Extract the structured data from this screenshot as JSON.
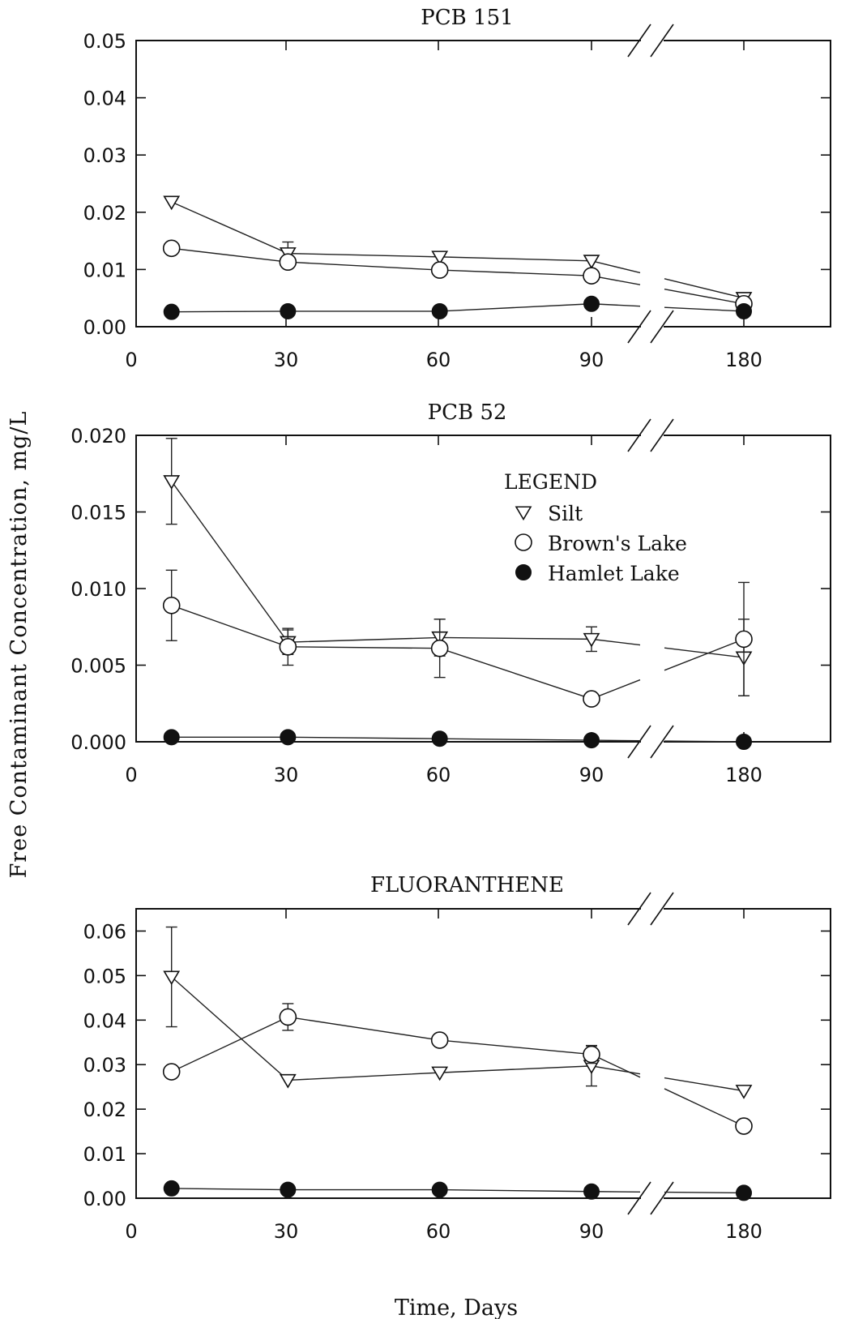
{
  "chart_data": [
    {
      "type": "line",
      "title": "PCB 151",
      "x_tick_labels": [
        "0",
        "30",
        "60",
        "90",
        "180"
      ],
      "x_break": "between 90 and 180",
      "ylim": [
        0,
        0.05
      ],
      "y_tick_labels": [
        "0.00",
        "0.01",
        "0.02",
        "0.03",
        "0.04",
        "0.05"
      ],
      "series": [
        {
          "name": "Silt",
          "marker": "triangle-down",
          "x": [
            7,
            30,
            60,
            90,
            180
          ],
          "y": [
            0.0218,
            0.0128,
            0.0122,
            0.0115,
            0.005
          ],
          "err": [
            0,
            0.002,
            0,
            0,
            0
          ]
        },
        {
          "name": "Brown's Lake",
          "marker": "circle-open",
          "x": [
            7,
            30,
            60,
            90,
            180
          ],
          "y": [
            0.0137,
            0.0113,
            0.0099,
            0.0089,
            0.004
          ],
          "err": [
            0,
            0.0008,
            0,
            0,
            0
          ]
        },
        {
          "name": "Hamlet Lake",
          "marker": "circle-filled",
          "x": [
            7,
            30,
            60,
            90,
            180
          ],
          "y": [
            0.0026,
            0.0027,
            0.0027,
            0.004,
            0.0027
          ],
          "err": [
            0,
            0,
            0,
            0,
            0
          ]
        }
      ]
    },
    {
      "type": "line",
      "title": "PCB 52",
      "x_tick_labels": [
        "0",
        "30",
        "60",
        "90",
        "180"
      ],
      "x_break": "between 90 and 180",
      "ylim": [
        0,
        0.02
      ],
      "y_tick_labels": [
        "0.000",
        "0.005",
        "0.010",
        "0.015",
        "0.020"
      ],
      "series": [
        {
          "name": "Silt",
          "marker": "triangle-down",
          "x": [
            7,
            30,
            60,
            90,
            180
          ],
          "y": [
            0.017,
            0.0065,
            0.0068,
            0.0067,
            0.0055
          ],
          "err": [
            0.0028,
            0.0008,
            0.0012,
            0.0008,
            0.0025
          ]
        },
        {
          "name": "Brown's Lake",
          "marker": "circle-open",
          "x": [
            7,
            30,
            60,
            90,
            180
          ],
          "y": [
            0.0089,
            0.0062,
            0.0061,
            0.0028,
            0.0067
          ],
          "err": [
            0.0023,
            0.0012,
            0.0019,
            0,
            0.0037
          ]
        },
        {
          "name": "Hamlet Lake",
          "marker": "circle-filled",
          "x": [
            7,
            30,
            60,
            90,
            180
          ],
          "y": [
            0.0003,
            0.0003,
            0.0002,
            0.0001,
            0.0
          ],
          "err": [
            0,
            0,
            0,
            0,
            0
          ]
        }
      ]
    },
    {
      "type": "line",
      "title": "FLUORANTHENE",
      "x_tick_labels": [
        "0",
        "30",
        "60",
        "90",
        "180"
      ],
      "x_break": "between 90 and 180",
      "ylim": [
        0,
        0.065
      ],
      "y_tick_labels": [
        "0.00",
        "0.01",
        "0.02",
        "0.03",
        "0.04",
        "0.05",
        "0.06"
      ],
      "series": [
        {
          "name": "Silt",
          "marker": "triangle-down",
          "x": [
            7,
            30,
            60,
            90,
            180
          ],
          "y": [
            0.0497,
            0.0265,
            0.0282,
            0.0297,
            0.0241
          ],
          "err": [
            0.0112,
            0,
            0,
            0.0045,
            0
          ]
        },
        {
          "name": "Brown's Lake",
          "marker": "circle-open",
          "x": [
            7,
            30,
            60,
            90,
            180
          ],
          "y": [
            0.0284,
            0.0407,
            0.0355,
            0.0323,
            0.0162
          ],
          "err": [
            0,
            0.003,
            0,
            0.002,
            0
          ]
        },
        {
          "name": "Hamlet Lake",
          "marker": "circle-filled",
          "x": [
            7,
            30,
            60,
            90,
            180
          ],
          "y": [
            0.0022,
            0.0019,
            0.0019,
            0.0015,
            0.0012
          ],
          "err": [
            0,
            0,
            0,
            0,
            0
          ]
        }
      ]
    }
  ],
  "ylabel": "Free Contaminant Concentration, mg/L",
  "xlabel": "Time, Days",
  "legend": {
    "title": "LEGEND",
    "items": [
      {
        "label": "Silt",
        "marker": "triangle-down"
      },
      {
        "label": "Brown's Lake",
        "marker": "circle-open"
      },
      {
        "label": "Hamlet Lake",
        "marker": "circle-filled"
      }
    ],
    "placement": "inside middle chart, upper right"
  },
  "colors": {
    "ink": "#111111",
    "background": "#ffffff"
  }
}
